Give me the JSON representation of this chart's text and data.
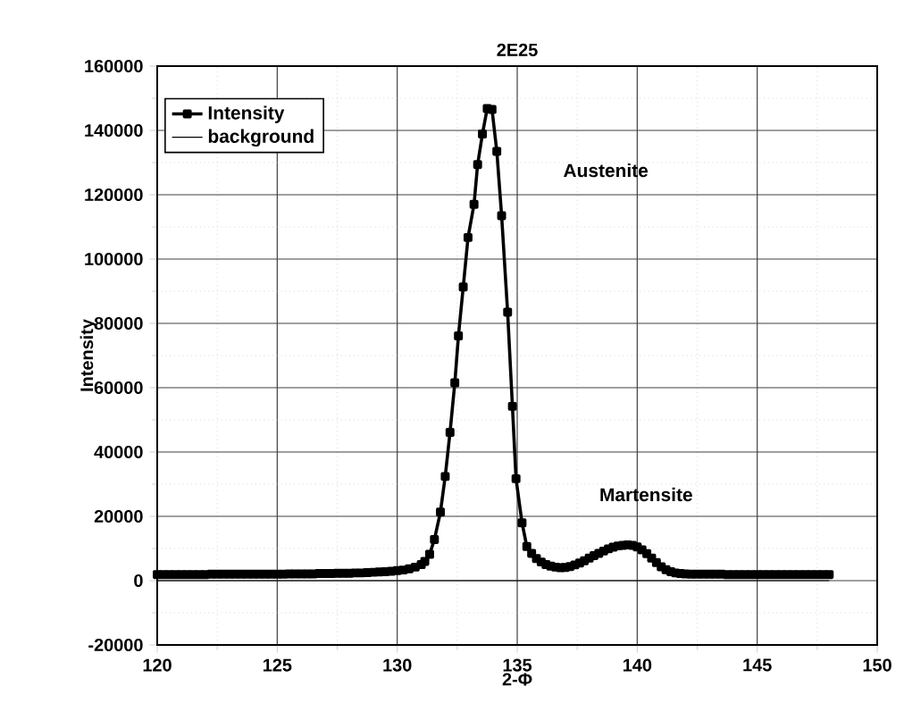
{
  "chart_data": {
    "type": "line",
    "title": "2E25",
    "xlabel": "2-Φ",
    "ylabel": "Intensity",
    "xlim": [
      120,
      150
    ],
    "xticks": [
      120,
      125,
      130,
      135,
      140,
      145,
      150
    ],
    "ylim": [
      -20000,
      160000
    ],
    "yticks": [
      -20000,
      0,
      20000,
      40000,
      60000,
      80000,
      100000,
      120000,
      140000,
      160000
    ],
    "grid": true,
    "legend": "top left",
    "line_style": "solid",
    "series": [
      {
        "name": "Intensity",
        "color": "#000000",
        "marker": "square",
        "x": [
          120,
          120.25,
          120.5,
          120.75,
          121,
          121.25,
          121.5,
          121.75,
          122,
          122.25,
          122.5,
          122.75,
          123,
          123.25,
          123.5,
          123.75,
          124,
          124.25,
          124.5,
          124.75,
          125,
          125.25,
          125.5,
          125.75,
          126,
          126.25,
          126.5,
          126.75,
          127,
          127.25,
          127.5,
          127.75,
          128,
          128.25,
          128.5,
          128.75,
          129,
          129.25,
          129.5,
          129.75,
          130,
          130.25,
          130.5,
          130.75,
          131,
          131.15,
          131.35,
          131.55,
          131.8,
          132,
          132.2,
          132.4,
          132.55,
          132.75,
          132.95,
          133.2,
          133.35,
          133.55,
          133.75,
          133.95,
          134.15,
          134.35,
          134.6,
          134.8,
          134.95,
          135.2,
          135.4,
          135.6,
          135.8,
          136,
          136.2,
          136.4,
          136.6,
          136.8,
          137,
          137.2,
          137.4,
          137.6,
          137.8,
          138,
          138.2,
          138.4,
          138.6,
          138.8,
          139,
          139.2,
          139.4,
          139.6,
          139.8,
          140,
          140.2,
          140.4,
          140.6,
          140.8,
          141,
          141.2,
          141.4,
          141.6,
          141.8,
          142,
          142.25,
          142.5,
          142.75,
          143,
          143.25,
          143.5,
          143.75,
          144,
          144.25,
          144.5,
          144.75,
          145,
          145.25,
          145.5,
          145.75,
          146,
          146.25,
          146.5,
          146.75,
          147,
          147.25,
          147.5,
          147.75,
          148
        ],
        "values": [
          1900,
          1900,
          1900,
          1900,
          1900,
          1900,
          1900,
          1900,
          1900,
          2000,
          2000,
          2000,
          2000,
          2000,
          2000,
          2000,
          2000,
          2000,
          2000,
          2000,
          2000,
          2000,
          2100,
          2100,
          2100,
          2100,
          2100,
          2200,
          2200,
          2200,
          2300,
          2300,
          2300,
          2400,
          2400,
          2500,
          2600,
          2700,
          2800,
          2900,
          3100,
          3300,
          3700,
          4200,
          5000,
          6000,
          8200,
          12800,
          21300,
          32400,
          46100,
          61500,
          76100,
          91300,
          106700,
          117000,
          129400,
          138900,
          146800,
          146500,
          133500,
          113500,
          83500,
          54200,
          31700,
          18000,
          10600,
          8500,
          6900,
          5800,
          5000,
          4500,
          4200,
          4000,
          4100,
          4400,
          4900,
          5500,
          6200,
          7000,
          7800,
          8500,
          9200,
          9900,
          10400,
          10800,
          11000,
          11100,
          11000,
          10500,
          9600,
          8400,
          7000,
          5600,
          4300,
          3400,
          2800,
          2400,
          2200,
          2100,
          2000,
          2000,
          2000,
          2000,
          2000,
          2000,
          1900,
          1900,
          1900,
          1900,
          1900,
          1900,
          1900,
          1900,
          1900,
          1900,
          1900,
          1900,
          1900,
          1900,
          1900,
          1900,
          1900,
          1900
        ]
      },
      {
        "name": "background",
        "color": "#000000",
        "marker": "none",
        "x": [
          120,
          148
        ],
        "values": [
          0,
          0
        ]
      }
    ],
    "annotations": [
      "Austenite",
      "Martensite"
    ]
  }
}
